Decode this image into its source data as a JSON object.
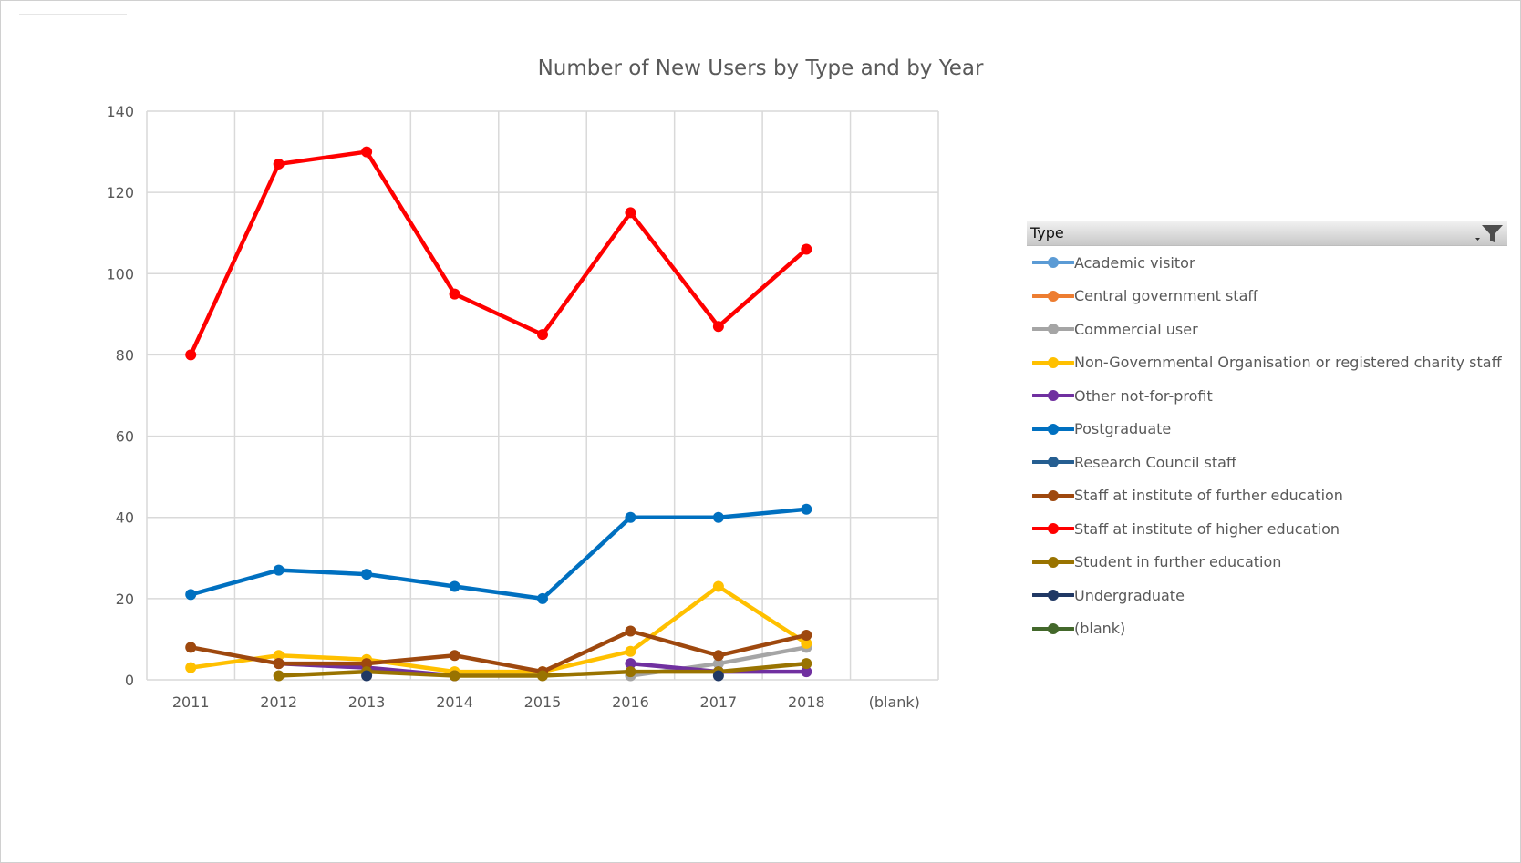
{
  "chart_data": {
    "type": "line",
    "title": "Number of New Users by Type and by Year",
    "xlabel": "",
    "ylabel": "",
    "categories": [
      "2011",
      "2012",
      "2013",
      "2014",
      "2015",
      "2016",
      "2017",
      "2018",
      "(blank)"
    ],
    "ylim": [
      0,
      140
    ],
    "yticks": [
      0,
      20,
      40,
      60,
      80,
      100,
      120,
      140
    ],
    "grid": true,
    "legend_title": "Type",
    "legend_position": "right",
    "series": [
      {
        "name": "Academic visitor",
        "color": "#5b9bd5",
        "values": [
          null,
          null,
          null,
          null,
          null,
          null,
          null,
          null,
          null
        ]
      },
      {
        "name": "Central government staff",
        "color": "#ed7d31",
        "values": [
          null,
          null,
          null,
          null,
          null,
          null,
          null,
          null,
          null
        ]
      },
      {
        "name": "Commercial user",
        "color": "#a5a5a5",
        "values": [
          null,
          null,
          null,
          null,
          null,
          1,
          4,
          8,
          null
        ]
      },
      {
        "name": "Non-Governmental Organisation or registered charity staff",
        "color": "#ffc000",
        "values": [
          3,
          6,
          5,
          2,
          2,
          7,
          23,
          9,
          null
        ]
      },
      {
        "name": "Other not-for-profit",
        "color": "#7030a0",
        "values": [
          null,
          4,
          3,
          1,
          null,
          4,
          2,
          2,
          null
        ]
      },
      {
        "name": "Postgraduate",
        "color": "#0070c0",
        "values": [
          21,
          27,
          26,
          23,
          20,
          40,
          40,
          42,
          null
        ]
      },
      {
        "name": "Research Council staff",
        "color": "#255e91",
        "values": [
          null,
          null,
          null,
          null,
          null,
          null,
          null,
          null,
          null
        ]
      },
      {
        "name": "Staff at institute of further education",
        "color": "#9e480e",
        "values": [
          8,
          4,
          4,
          6,
          2,
          12,
          6,
          11,
          null
        ]
      },
      {
        "name": "Staff at institute of higher education",
        "color": "#ff0000",
        "values": [
          80,
          127,
          130,
          95,
          85,
          115,
          87,
          106,
          null
        ]
      },
      {
        "name": "Student in further education",
        "color": "#997300",
        "values": [
          null,
          1,
          2,
          1,
          1,
          2,
          2,
          4,
          null
        ]
      },
      {
        "name": "Undergraduate",
        "color": "#203864",
        "values": [
          null,
          null,
          1,
          null,
          null,
          null,
          1,
          null,
          null
        ]
      },
      {
        "name": "(blank)",
        "color": "#43682b",
        "values": [
          null,
          null,
          null,
          null,
          null,
          null,
          null,
          null,
          null
        ]
      }
    ]
  }
}
